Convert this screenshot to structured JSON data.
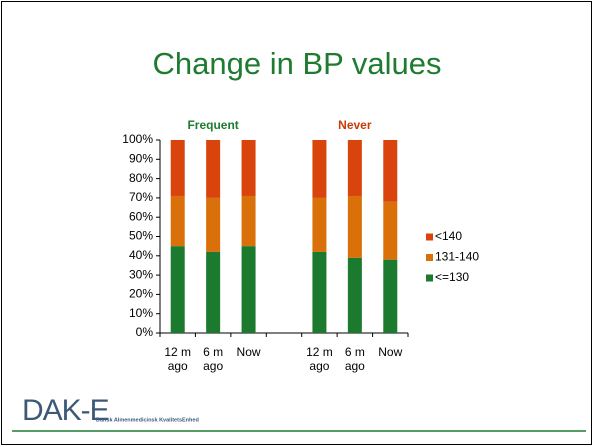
{
  "chart_data": {
    "type": "stacked_bar",
    "title": "Change in BP values",
    "group_labels": [
      {
        "label": "Frequent",
        "color": "#1e7b30"
      },
      {
        "label": "Never",
        "color": "#c83c0a"
      }
    ],
    "categories": [
      "12 m ago",
      "6 m ago",
      "Now",
      null,
      "12 m ago",
      "6 m ago",
      "Now"
    ],
    "series": [
      {
        "name": "<=130",
        "color": "#1b7a2e",
        "values": [
          45,
          42,
          45,
          null,
          42,
          39,
          38
        ]
      },
      {
        "name": "131-140",
        "color": "#d9700a",
        "values": [
          26,
          28,
          26,
          null,
          28,
          32,
          30
        ]
      },
      {
        "name": "<140",
        "color": "#d8440c",
        "values": [
          29,
          30,
          29,
          null,
          30,
          29,
          32
        ]
      }
    ],
    "ylim": [
      0,
      100
    ],
    "yticks": [
      {
        "value": 0,
        "label": "0%"
      },
      {
        "value": 10,
        "label": "10%"
      },
      {
        "value": 20,
        "label": "20%"
      },
      {
        "value": 30,
        "label": "30%"
      },
      {
        "value": 40,
        "label": "40%"
      },
      {
        "value": 50,
        "label": "50%"
      },
      {
        "value": 60,
        "label": "60%"
      },
      {
        "value": 70,
        "label": "70%"
      },
      {
        "value": 80,
        "label": "80%"
      },
      {
        "value": 90,
        "label": "90%"
      },
      {
        "value": 100,
        "label": "100%"
      }
    ],
    "grid": false
  },
  "logo": {
    "name": "DAK-E",
    "subtitle": "Dansk Almenmedicinsk KvalitetsEnhed"
  }
}
